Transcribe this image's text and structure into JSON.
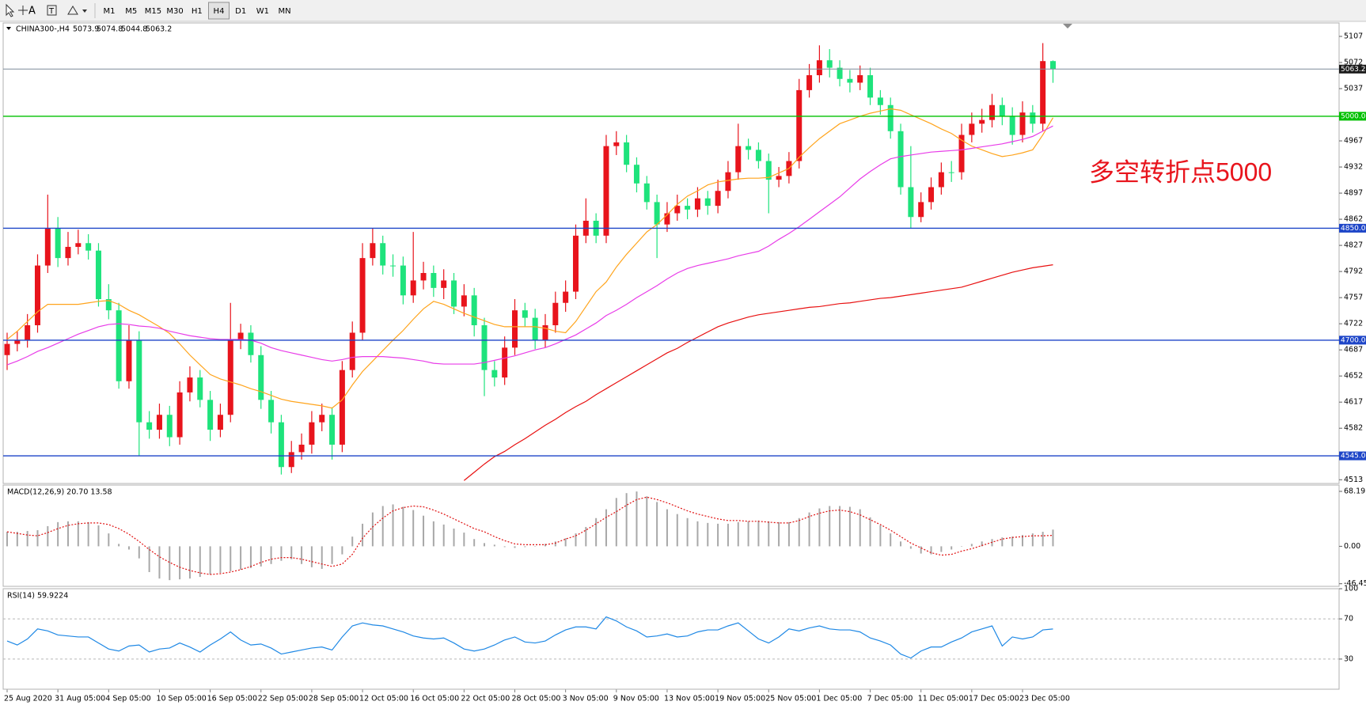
{
  "toolbar": {
    "timeframes": [
      "M1",
      "M5",
      "M15",
      "M30",
      "H1",
      "H4",
      "D1",
      "W1",
      "MN"
    ],
    "active": "H4"
  },
  "chart_data": [
    {
      "type": "candlestick",
      "header": {
        "symbol": "CHINA300-,H4",
        "values": [
          5073.9,
          5074.8,
          5044.8,
          5063.2
        ]
      },
      "annotation": "多空转折点5000",
      "categories": [
        "25 Aug 2020",
        null,
        null,
        null,
        null,
        "31 Aug 05:00",
        null,
        null,
        null,
        null,
        "4 Sep 05:00",
        null,
        null,
        null,
        null,
        "10 Sep 05:00",
        null,
        null,
        null,
        null,
        "16 Sep 05:00",
        null,
        null,
        null,
        null,
        "22 Sep 05:00",
        null,
        null,
        null,
        null,
        "28 Sep 05:00",
        null,
        null,
        null,
        null,
        "12 Oct 05:00",
        null,
        null,
        null,
        null,
        "16 Oct 05:00",
        null,
        null,
        null,
        null,
        "22 Oct 05:00",
        null,
        null,
        null,
        null,
        "28 Oct 05:00",
        null,
        null,
        null,
        null,
        "3 Nov 05:00",
        null,
        null,
        null,
        null,
        "9 Nov 05:00",
        null,
        null,
        null,
        null,
        "13 Nov 05:00",
        null,
        null,
        null,
        null,
        "19 Nov 05:00",
        null,
        null,
        null,
        null,
        "25 Nov 05:00",
        null,
        null,
        null,
        null,
        "1 Dec 05:00",
        null,
        null,
        null,
        null,
        "7 Dec 05:00",
        null,
        null,
        null,
        null,
        "11 Dec 05:00",
        null,
        null,
        null,
        null,
        "17 Dec 05:00",
        null,
        null,
        null,
        null,
        "23 Dec 05:00",
        null,
        null,
        null
      ],
      "open": [
        4680,
        4695,
        4700,
        4720,
        4800,
        4850,
        4810,
        4825,
        4830,
        4820,
        4755,
        4740,
        4645,
        4700,
        4590,
        4580,
        4600,
        4570,
        4630,
        4650,
        4620,
        4580,
        4600,
        4700,
        4710,
        4680,
        4620,
        4590,
        4530,
        4550,
        4560,
        4590,
        4600,
        4560,
        4660,
        4710,
        4810,
        4830,
        4800,
        4800,
        4760,
        4780,
        4790,
        4770,
        4780,
        4745,
        4760,
        4720,
        4660,
        4650,
        4690,
        4740,
        4730,
        4700,
        4720,
        4750,
        4765,
        4840,
        4860,
        4840,
        4960,
        4965,
        4935,
        4910,
        4885,
        4855,
        4870,
        4880,
        4875,
        4890,
        4880,
        4900,
        4925,
        4960,
        4955,
        4940,
        4915,
        4920,
        4940,
        5035,
        5055,
        5075,
        5065,
        5050,
        5045,
        5055,
        5025,
        5015,
        4980,
        4905,
        4865,
        4885,
        4905,
        4925,
        4925,
        4975,
        4990,
        4995,
        5015,
        5000,
        4975,
        5005,
        4990,
        5073.9
      ],
      "high": [
        4710,
        4712,
        4735,
        4815,
        4895,
        4865,
        4845,
        4848,
        4842,
        4830,
        4775,
        4750,
        4720,
        4712,
        4605,
        4615,
        4612,
        4645,
        4665,
        4660,
        4632,
        4615,
        4750,
        4722,
        4720,
        4692,
        4632,
        4600,
        4565,
        4575,
        4605,
        4615,
        4610,
        4672,
        4725,
        4830,
        4850,
        4840,
        4815,
        4812,
        4845,
        4805,
        4800,
        4795,
        4790,
        4775,
        4770,
        4730,
        4672,
        4705,
        4755,
        4750,
        4742,
        4735,
        4765,
        4780,
        4855,
        4890,
        4870,
        4975,
        4980,
        4975,
        4945,
        4920,
        4895,
        4885,
        4895,
        4890,
        4905,
        4900,
        4915,
        4940,
        4990,
        4970,
        4965,
        4950,
        4932,
        4952,
        5050,
        5070,
        5095,
        5090,
        5075,
        5062,
        5068,
        5065,
        5035,
        5025,
        4990,
        4960,
        4898,
        4918,
        4938,
        4940,
        4990,
        5005,
        5010,
        5030,
        5025,
        5012,
        5020,
        5015,
        5098,
        5074.8
      ],
      "low": [
        4660,
        4685,
        4690,
        4710,
        4790,
        4798,
        4800,
        4815,
        4808,
        4745,
        4728,
        4635,
        4635,
        4545,
        4568,
        4568,
        4558,
        4560,
        4618,
        4610,
        4565,
        4570,
        4590,
        4688,
        4670,
        4608,
        4575,
        4520,
        4522,
        4540,
        4548,
        4578,
        4540,
        4550,
        4650,
        4700,
        4800,
        4788,
        4785,
        4748,
        4750,
        4768,
        4758,
        4755,
        4735,
        4732,
        4705,
        4625,
        4638,
        4640,
        4680,
        4718,
        4688,
        4690,
        4710,
        4738,
        4755,
        4830,
        4830,
        4830,
        4948,
        4925,
        4898,
        4875,
        4810,
        4845,
        4860,
        4862,
        4865,
        4868,
        4870,
        4890,
        4915,
        4942,
        4930,
        4870,
        4905,
        4910,
        4930,
        5025,
        5045,
        5052,
        5040,
        5032,
        5035,
        5015,
        5002,
        4970,
        4895,
        4850,
        4858,
        4875,
        4895,
        4912,
        4915,
        4965,
        4978,
        4985,
        4988,
        4962,
        4965,
        4978,
        4980,
        5044.8
      ],
      "close": [
        4695,
        4700,
        4720,
        4800,
        4850,
        4810,
        4825,
        4830,
        4820,
        4755,
        4740,
        4645,
        4700,
        4590,
        4580,
        4600,
        4570,
        4630,
        4650,
        4620,
        4580,
        4600,
        4700,
        4710,
        4680,
        4620,
        4590,
        4530,
        4550,
        4560,
        4590,
        4600,
        4560,
        4660,
        4710,
        4810,
        4830,
        4800,
        4800,
        4760,
        4780,
        4790,
        4770,
        4780,
        4745,
        4760,
        4720,
        4660,
        4650,
        4690,
        4740,
        4730,
        4700,
        4720,
        4750,
        4765,
        4840,
        4860,
        4840,
        4960,
        4965,
        4935,
        4910,
        4885,
        4855,
        4870,
        4880,
        4875,
        4890,
        4880,
        4900,
        4925,
        4960,
        4955,
        4940,
        4915,
        4920,
        4940,
        5035,
        5055,
        5075,
        5065,
        5050,
        5045,
        5055,
        5025,
        5015,
        4980,
        4905,
        4865,
        4885,
        4905,
        4925,
        4925,
        4975,
        4990,
        4995,
        5015,
        5000,
        4975,
        5005,
        4990,
        5073.9,
        5063.2
      ],
      "up_color": "#e8141c",
      "down_color": "#1ee37c",
      "overlays": [
        {
          "color": "#ffa41c",
          "values": [
            4701,
            4712,
            4725,
            4738,
            4748,
            4748,
            4748,
            4748,
            4750,
            4752,
            4753,
            4748,
            4740,
            4734,
            4726,
            4718,
            4709,
            4695,
            4680,
            4667,
            4654,
            4648,
            4644,
            4640,
            4635,
            4631,
            4626,
            4621,
            4618,
            4616,
            4614,
            4612,
            4609,
            4620,
            4640,
            4658,
            4672,
            4686,
            4700,
            4713,
            4728,
            4742,
            4752,
            4748,
            4742,
            4736,
            4731,
            4726,
            4721,
            4718,
            4718,
            4718,
            4718,
            4716,
            4712,
            4710,
            4725,
            4745,
            4765,
            4778,
            4798,
            4815,
            4830,
            4845,
            4855,
            4868,
            4882,
            4893,
            4900,
            4908,
            4912,
            4914,
            4916,
            4917,
            4917,
            4918,
            4924,
            4930,
            4945,
            4958,
            4970,
            4980,
            4990,
            4995,
            5000,
            5004,
            5007,
            5010,
            5008,
            5002,
            4996,
            4990,
            4983,
            4977,
            4968,
            4960,
            4955,
            4950,
            4946,
            4948,
            4951,
            4955,
            4975,
            4998
          ]
        },
        {
          "color": "#e83ce8",
          "values": [
            4667,
            4672,
            4678,
            4685,
            4690,
            4696,
            4702,
            4708,
            4713,
            4718,
            4721,
            4722,
            4721,
            4719,
            4718,
            4716,
            4712,
            4709,
            4706,
            4704,
            4702,
            4701,
            4701,
            4701,
            4700,
            4696,
            4690,
            4686,
            4683,
            4680,
            4677,
            4674,
            4672,
            4674,
            4677,
            4678,
            4678,
            4678,
            4677,
            4676,
            4674,
            4672,
            4669,
            4668,
            4668,
            4668,
            4668,
            4670,
            4673,
            4676,
            4679,
            4683,
            4687,
            4690,
            4695,
            4701,
            4707,
            4715,
            4723,
            4733,
            4740,
            4748,
            4757,
            4765,
            4773,
            4782,
            4790,
            4796,
            4800,
            4803,
            4806,
            4809,
            4813,
            4816,
            4819,
            4826,
            4835,
            4843,
            4852,
            4862,
            4872,
            4882,
            4892,
            4904,
            4916,
            4926,
            4935,
            4943,
            4946,
            4948,
            4950,
            4952,
            4953,
            4954,
            4955,
            4957,
            4959,
            4961,
            4963,
            4966,
            4969,
            4973,
            4980,
            4987
          ]
        },
        {
          "color": "#e81010",
          "values": [
            null,
            null,
            null,
            null,
            null,
            null,
            null,
            null,
            null,
            null,
            null,
            null,
            null,
            null,
            null,
            null,
            null,
            null,
            null,
            null,
            null,
            null,
            null,
            null,
            null,
            null,
            null,
            null,
            null,
            null,
            null,
            null,
            null,
            null,
            null,
            null,
            null,
            null,
            null,
            null,
            null,
            null,
            null,
            null,
            null,
            4512,
            4523,
            4534,
            4544,
            4551,
            4560,
            4568,
            4577,
            4586,
            4594,
            4603,
            4611,
            4618,
            4627,
            4635,
            4643,
            4651,
            4659,
            4667,
            4675,
            4683,
            4689,
            4697,
            4704,
            4711,
            4718,
            4723,
            4727,
            4731,
            4734,
            4736,
            4738,
            4740,
            4742,
            4744,
            4745,
            4747,
            4749,
            4750,
            4752,
            4754,
            4756,
            4757,
            4759,
            4761,
            4763,
            4765,
            4767,
            4769,
            4771,
            4775,
            4779,
            4783,
            4787,
            4791,
            4794,
            4797,
            4799,
            4801
          ]
        }
      ],
      "levels": [
        {
          "value": 5000,
          "label": "5000.0",
          "color": "#00c000"
        },
        {
          "value": 4850,
          "label": "4850.0",
          "color": "#1d45c8"
        },
        {
          "value": 4700,
          "label": "4700.0",
          "color": "#1d45c8"
        },
        {
          "value": 4545,
          "label": "4545.0",
          "color": "#1d45c8"
        }
      ],
      "last_price": 5063.2,
      "ylim": [
        4508,
        5125
      ],
      "yticks": [
        5107,
        5072,
        5037,
        4967,
        4932,
        4897,
        4862,
        4827,
        4792,
        4757,
        4722,
        4687,
        4652,
        4617,
        4582,
        4513
      ]
    },
    {
      "type": "bar",
      "title": "MACD(12,26,9) 20.70 13.58",
      "values": [
        18,
        18,
        19,
        20,
        25,
        30,
        31,
        31,
        30,
        26,
        16,
        3,
        -4,
        -15,
        -32,
        -40,
        -42,
        -41,
        -40,
        -38,
        -35,
        -33,
        -31,
        -29,
        -27,
        -25,
        -22,
        -18,
        -16,
        -22,
        -26,
        -28,
        -22,
        -10,
        12,
        28,
        42,
        50,
        52,
        49,
        45,
        38,
        31,
        27,
        22,
        17,
        9,
        4,
        2,
        -1,
        -2,
        -1,
        0,
        3,
        6,
        10,
        16,
        24,
        35,
        46,
        60,
        66,
        68,
        62,
        55,
        46,
        40,
        35,
        31,
        29,
        28,
        28,
        30,
        31,
        32,
        31,
        30,
        30,
        35,
        42,
        47,
        50,
        50,
        49,
        46,
        36,
        26,
        16,
        6,
        -3,
        -9,
        -10,
        -7,
        -4,
        0,
        3,
        6,
        9,
        11,
        12,
        14,
        16,
        18,
        20.7
      ],
      "color": "#a8a8a8",
      "signal": {
        "color": "#e01010",
        "values": [
          18,
          16,
          14,
          13,
          17,
          22,
          26,
          28,
          29,
          29,
          27,
          22,
          15,
          6,
          -4,
          -13,
          -20,
          -26,
          -30,
          -33,
          -35,
          -34,
          -32,
          -29,
          -25,
          -20,
          -16,
          -14,
          -14,
          -16,
          -19,
          -22,
          -25,
          -22,
          -10,
          10,
          24,
          35,
          44,
          48,
          50,
          49,
          45,
          40,
          34,
          28,
          22,
          18,
          12,
          7,
          3,
          2,
          2,
          2,
          4,
          9,
          13,
          20,
          28,
          36,
          43,
          51,
          58,
          61,
          58,
          54,
          49,
          44,
          40,
          37,
          34,
          32,
          32,
          31,
          31,
          30,
          29,
          29,
          32,
          37,
          41,
          44,
          45,
          43,
          39,
          33,
          27,
          20,
          12,
          4,
          -2,
          -8,
          -11,
          -10,
          -6,
          -3,
          1,
          5,
          9,
          11,
          12,
          13,
          13,
          13.58
        ]
      },
      "ylim": [
        -49.7,
        76
      ],
      "yticks": [
        68.19,
        {
          "value": 0,
          "label": "0.00"
        },
        -46.45
      ]
    },
    {
      "type": "line",
      "title": "RSI(14) 59.9224",
      "values": [
        48,
        44,
        50,
        60,
        58,
        54,
        53,
        52,
        52,
        46,
        40,
        38,
        43,
        44,
        37,
        40,
        41,
        46,
        42,
        37,
        44,
        50,
        57,
        49,
        44,
        45,
        41,
        35,
        37,
        39,
        41,
        42,
        39,
        52,
        63,
        66,
        64,
        63,
        60,
        57,
        53,
        51,
        50,
        51,
        46,
        40,
        38,
        40,
        44,
        49,
        52,
        47,
        46,
        48,
        54,
        59,
        62,
        62,
        60,
        72,
        68,
        62,
        58,
        52,
        53,
        55,
        52,
        53,
        57,
        59,
        59,
        63,
        66,
        58,
        50,
        46,
        52,
        60,
        58,
        61,
        63,
        60,
        59,
        59,
        57,
        51,
        48,
        44,
        35,
        31,
        38,
        42,
        42,
        47,
        51,
        57,
        60,
        63,
        43,
        52,
        50,
        52,
        59,
        59.9224
      ],
      "color": "#1e88e5",
      "ylim": [
        0,
        100
      ],
      "yticks": [
        100,
        70,
        30
      ],
      "grid": "dashed"
    }
  ]
}
